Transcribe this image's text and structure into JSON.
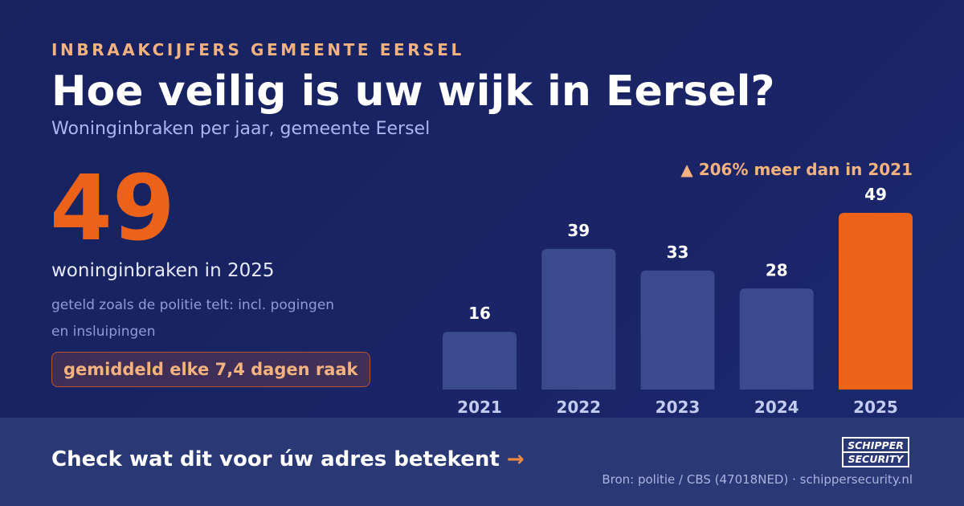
{
  "header": {
    "eyebrow": "INBRAAKCIJFERS GEMEENTE EERSEL",
    "title": "Hoe veilig is uw wijk in Eersel?",
    "subtitle": "Woninginbraken per jaar, gemeente Eersel"
  },
  "highlight": {
    "number": "49",
    "label": "woninginbraken in 2025",
    "note": "geteld zoals de politie telt: incl. pogingen en insluipingen",
    "pill": "gemiddeld elke 7,4 dagen raak"
  },
  "change_label": "▲ 206% meer dan in 2021",
  "colors": {
    "bar": "#3a4a8c",
    "bar_highlight": "#ec6219",
    "accent": "#f3b27e",
    "background": "#18235f"
  },
  "chart_data": {
    "type": "bar",
    "categories": [
      "2021",
      "2022",
      "2023",
      "2024",
      "2025"
    ],
    "values": [
      16,
      39,
      33,
      28,
      49
    ],
    "title": "Woninginbraken per jaar, gemeente Eersel",
    "highlight_category": "2025",
    "data_labels": true,
    "grid": false,
    "legend": "none"
  },
  "footer": {
    "cta": "Check wat dit voor úw adres betekent",
    "cta_arrow": "→",
    "source": "Bron: politie / CBS (47018NED) · schippersecurity.nl",
    "logo_line1": "SCHIPPER",
    "logo_line2": "SECURITY"
  }
}
